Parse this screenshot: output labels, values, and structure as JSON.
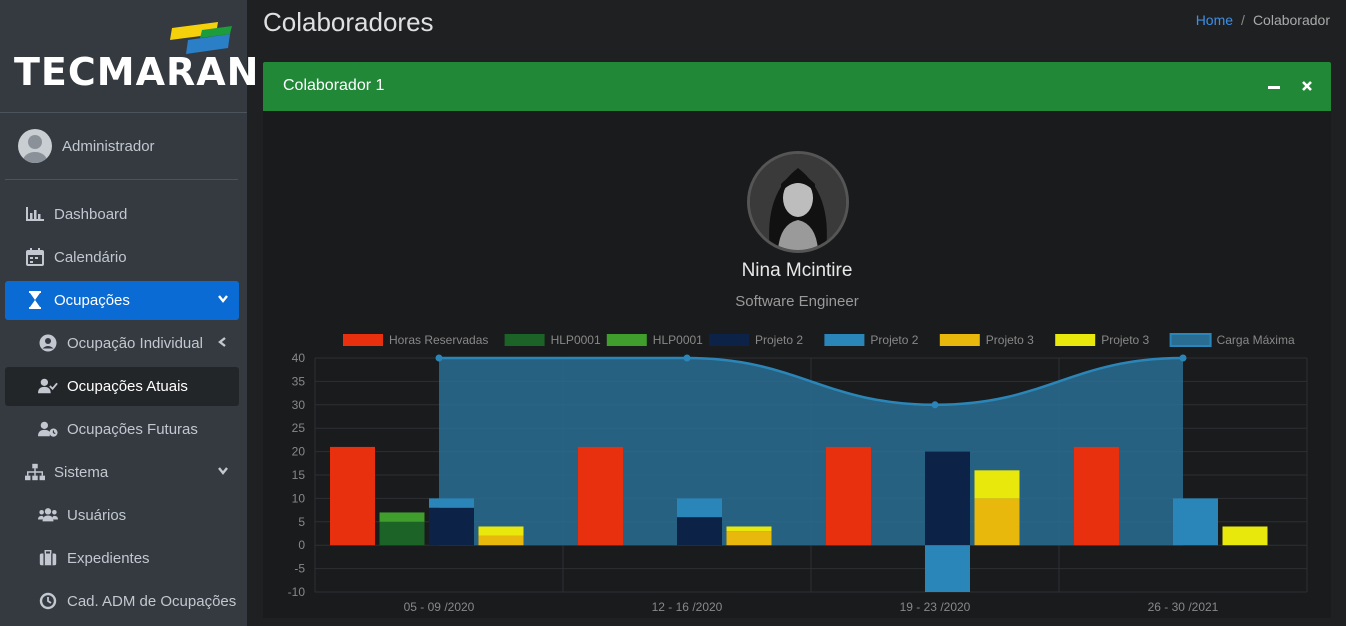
{
  "sidebar": {
    "brand": "TECMARAN",
    "user": "Administrador",
    "items": [
      {
        "label": "Dashboard",
        "icon": "chart-bar-icon"
      },
      {
        "label": "Calendário",
        "icon": "calendar-icon"
      },
      {
        "label": "Ocupações",
        "icon": "hourglass-icon"
      },
      {
        "label": "Ocupação Individual",
        "icon": "user-circle-icon"
      },
      {
        "label": "Ocupações Atuais",
        "icon": "user-check-icon"
      },
      {
        "label": "Ocupações Futuras",
        "icon": "user-clock-icon"
      },
      {
        "label": "Sistema",
        "icon": "sitemap-icon"
      },
      {
        "label": "Usuários",
        "icon": "users-icon"
      },
      {
        "label": "Expedientes",
        "icon": "briefcase-icon"
      },
      {
        "label": "Cad. ADM de Ocupações",
        "icon": "clock-icon"
      }
    ]
  },
  "header": {
    "title": "Colaboradores",
    "breadcrumb": {
      "home": "Home",
      "sep": "/",
      "current": "Colaborador"
    }
  },
  "card": {
    "title": "Colaborador 1",
    "name": "Nina Mcintire",
    "role": "Software Engineer"
  },
  "colors": {
    "header_green": "#218838",
    "active_blue": "#0b6bd4"
  },
  "chart_data": {
    "type": "bar",
    "categories": [
      "05 - 09 /2020",
      "12 - 16 /2020",
      "19 - 23 /2020",
      "26 - 30 /2021"
    ],
    "ylim": [
      -10,
      40
    ],
    "yticks": [
      40,
      35,
      30,
      25,
      20,
      15,
      10,
      5,
      0,
      -5,
      -10
    ],
    "stack_groups": [
      {
        "series": [
          "Horas Reservadas"
        ],
        "color": "#e8300f"
      },
      {
        "series": [
          "HLP0001 (dark)",
          "HLP0001 (light)"
        ]
      },
      {
        "series": [
          "Projeto 2 (dark)",
          "Projeto 2 (light)"
        ]
      },
      {
        "series": [
          "Projeto 3 (dark)",
          "Projeto 3 (light)"
        ]
      }
    ],
    "series": [
      {
        "name": "Horas Reservadas",
        "color": "#e8300f",
        "group": 0,
        "values": [
          21,
          21,
          21,
          21
        ]
      },
      {
        "name": "HLP0001",
        "color": "#1b6327",
        "group": 1,
        "values": [
          5,
          0,
          0,
          0
        ]
      },
      {
        "name": "HLP0001",
        "color": "#3f9e2c",
        "group": 1,
        "values": [
          2,
          0,
          0,
          0
        ]
      },
      {
        "name": "Projeto 2",
        "color": "#0d2247",
        "group": 2,
        "values": [
          8,
          6,
          20,
          0
        ]
      },
      {
        "name": "Projeto 2",
        "color": "#2a86b8",
        "group": 2,
        "values": [
          2,
          4,
          -10,
          10
        ]
      },
      {
        "name": "Projeto 3",
        "color": "#e8b80d",
        "group": 3,
        "values": [
          2,
          3,
          10,
          0
        ]
      },
      {
        "name": "Projeto 3",
        "color": "#e8e80d",
        "group": 3,
        "values": [
          2,
          1,
          6,
          4
        ]
      }
    ],
    "line": {
      "name": "Carga Máxima",
      "color": "#2a86b8",
      "values": [
        40,
        40,
        30,
        40
      ]
    },
    "legend": [
      "Horas Reservadas",
      "HLP0001",
      "HLP0001",
      "Projeto 2",
      "Projeto 2",
      "Projeto 3",
      "Projeto 3",
      "Carga Máxima"
    ],
    "legend_position": "top",
    "grid": true
  }
}
